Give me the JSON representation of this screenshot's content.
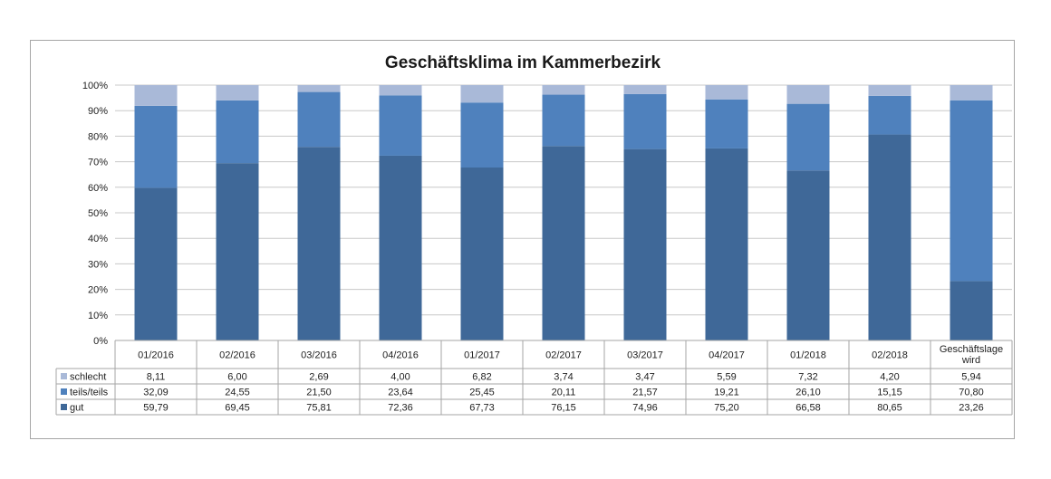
{
  "chart_data": {
    "type": "bar",
    "stacked": true,
    "percent": true,
    "title": "Geschäftsklima im Kammerbezirk",
    "xlabel": "",
    "ylabel": "",
    "ylim": [
      0,
      100
    ],
    "yticks": [
      "0%",
      "10%",
      "20%",
      "30%",
      "40%",
      "50%",
      "60%",
      "70%",
      "80%",
      "90%",
      "100%"
    ],
    "grid": true,
    "legend": "data-table-left",
    "categories": [
      "01/2016",
      "02/2016",
      "03/2016",
      "04/2016",
      "01/2017",
      "02/2017",
      "03/2017",
      "04/2017",
      "01/2018",
      "02/2018",
      "Geschäftslage wird"
    ],
    "category_lines": [
      [
        "01/2016"
      ],
      [
        "02/2016"
      ],
      [
        "03/2016"
      ],
      [
        "04/2016"
      ],
      [
        "01/2017"
      ],
      [
        "02/2017"
      ],
      [
        "03/2017"
      ],
      [
        "04/2017"
      ],
      [
        "01/2018"
      ],
      [
        "02/2018"
      ],
      [
        "Geschäftslage",
        "wird"
      ]
    ],
    "series": [
      {
        "name": "schlecht",
        "color": "#a9b9d8",
        "values": [
          8.11,
          6.0,
          2.69,
          4.0,
          6.82,
          3.74,
          3.47,
          5.59,
          7.32,
          4.2,
          5.94
        ],
        "labels": [
          "8,11",
          "6,00",
          "2,69",
          "4,00",
          "6,82",
          "3,74",
          "3,47",
          "5,59",
          "7,32",
          "4,20",
          "5,94"
        ]
      },
      {
        "name": "teils/teils",
        "color": "#4f81bd",
        "values": [
          32.09,
          24.55,
          21.5,
          23.64,
          25.45,
          20.11,
          21.57,
          19.21,
          26.1,
          15.15,
          70.8
        ],
        "labels": [
          "32,09",
          "24,55",
          "21,50",
          "23,64",
          "25,45",
          "20,11",
          "21,57",
          "19,21",
          "26,10",
          "15,15",
          "70,80"
        ]
      },
      {
        "name": "gut",
        "color": "#3f6898",
        "values": [
          59.79,
          69.45,
          75.81,
          72.36,
          67.73,
          76.15,
          74.96,
          75.2,
          66.58,
          80.65,
          23.26
        ],
        "labels": [
          "59,79",
          "69,45",
          "75,81",
          "72,36",
          "67,73",
          "76,15",
          "74,96",
          "75,20",
          "66,58",
          "80,65",
          "23,26"
        ]
      }
    ]
  }
}
